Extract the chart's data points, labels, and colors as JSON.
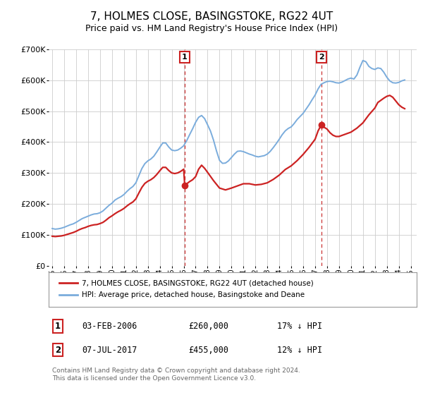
{
  "title": "7, HOLMES CLOSE, BASINGSTOKE, RG22 4UT",
  "subtitle": "Price paid vs. HM Land Registry's House Price Index (HPI)",
  "title_fontsize": 11,
  "subtitle_fontsize": 9,
  "bg_color": "#ffffff",
  "grid_color": "#cccccc",
  "ylim": [
    0,
    700000
  ],
  "yticks": [
    0,
    100000,
    200000,
    300000,
    400000,
    500000,
    600000,
    700000
  ],
  "ytick_labels": [
    "£0",
    "£100K",
    "£200K",
    "£300K",
    "£400K",
    "£500K",
    "£600K",
    "£700K"
  ],
  "xlim_start": 1994.7,
  "xlim_end": 2025.5,
  "xlabel_years": [
    1995,
    1996,
    1997,
    1998,
    1999,
    2000,
    2001,
    2002,
    2003,
    2004,
    2005,
    2006,
    2007,
    2008,
    2009,
    2010,
    2011,
    2012,
    2013,
    2014,
    2015,
    2016,
    2017,
    2018,
    2019,
    2020,
    2021,
    2022,
    2023,
    2024,
    2025
  ],
  "hpi_color": "#7aacdc",
  "sale_color": "#cc2222",
  "marker_color": "#cc2222",
  "dashed_line_color": "#cc3333",
  "annotation_box_color": "#cc2222",
  "sale1_x": 2006.09,
  "sale1_y": 260000,
  "sale2_x": 2017.51,
  "sale2_y": 455000,
  "legend_label_sale": "7, HOLMES CLOSE, BASINGSTOKE, RG22 4UT (detached house)",
  "legend_label_hpi": "HPI: Average price, detached house, Basingstoke and Deane",
  "table_row1": [
    "1",
    "03-FEB-2006",
    "£260,000",
    "17% ↓ HPI"
  ],
  "table_row2": [
    "2",
    "07-JUL-2017",
    "£455,000",
    "12% ↓ HPI"
  ],
  "footnote": "Contains HM Land Registry data © Crown copyright and database right 2024.\nThis data is licensed under the Open Government Licence v3.0.",
  "hpi_data": [
    [
      1995.0,
      120000
    ],
    [
      1995.25,
      118000
    ],
    [
      1995.5,
      119000
    ],
    [
      1995.75,
      121000
    ],
    [
      1996.0,
      124000
    ],
    [
      1996.25,
      128000
    ],
    [
      1996.5,
      132000
    ],
    [
      1996.75,
      135000
    ],
    [
      1997.0,
      140000
    ],
    [
      1997.25,
      146000
    ],
    [
      1997.5,
      152000
    ],
    [
      1997.75,
      156000
    ],
    [
      1998.0,
      160000
    ],
    [
      1998.25,
      164000
    ],
    [
      1998.5,
      167000
    ],
    [
      1998.75,
      168000
    ],
    [
      1999.0,
      171000
    ],
    [
      1999.25,
      177000
    ],
    [
      1999.5,
      186000
    ],
    [
      1999.75,
      195000
    ],
    [
      2000.0,
      202000
    ],
    [
      2000.25,
      212000
    ],
    [
      2000.5,
      218000
    ],
    [
      2000.75,
      223000
    ],
    [
      2001.0,
      230000
    ],
    [
      2001.25,
      240000
    ],
    [
      2001.5,
      249000
    ],
    [
      2001.75,
      256000
    ],
    [
      2002.0,
      268000
    ],
    [
      2002.25,
      291000
    ],
    [
      2002.5,
      314000
    ],
    [
      2002.75,
      330000
    ],
    [
      2003.0,
      339000
    ],
    [
      2003.25,
      345000
    ],
    [
      2003.5,
      354000
    ],
    [
      2003.75,
      368000
    ],
    [
      2004.0,
      383000
    ],
    [
      2004.25,
      397000
    ],
    [
      2004.5,
      397000
    ],
    [
      2004.75,
      384000
    ],
    [
      2005.0,
      374000
    ],
    [
      2005.25,
      372000
    ],
    [
      2005.5,
      374000
    ],
    [
      2005.75,
      380000
    ],
    [
      2006.0,
      388000
    ],
    [
      2006.25,
      404000
    ],
    [
      2006.5,
      424000
    ],
    [
      2006.75,
      443000
    ],
    [
      2007.0,
      464000
    ],
    [
      2007.25,
      480000
    ],
    [
      2007.5,
      486000
    ],
    [
      2007.75,
      476000
    ],
    [
      2008.0,
      456000
    ],
    [
      2008.25,
      435000
    ],
    [
      2008.5,
      406000
    ],
    [
      2008.75,
      371000
    ],
    [
      2009.0,
      341000
    ],
    [
      2009.25,
      331000
    ],
    [
      2009.5,
      332000
    ],
    [
      2009.75,
      339000
    ],
    [
      2010.0,
      350000
    ],
    [
      2010.25,
      361000
    ],
    [
      2010.5,
      370000
    ],
    [
      2010.75,
      371000
    ],
    [
      2011.0,
      369000
    ],
    [
      2011.25,
      365000
    ],
    [
      2011.5,
      361000
    ],
    [
      2011.75,
      358000
    ],
    [
      2012.0,
      354000
    ],
    [
      2012.25,
      352000
    ],
    [
      2012.5,
      354000
    ],
    [
      2012.75,
      356000
    ],
    [
      2013.0,
      361000
    ],
    [
      2013.25,
      370000
    ],
    [
      2013.5,
      382000
    ],
    [
      2013.75,
      395000
    ],
    [
      2014.0,
      409000
    ],
    [
      2014.25,
      424000
    ],
    [
      2014.5,
      436000
    ],
    [
      2014.75,
      444000
    ],
    [
      2015.0,
      449000
    ],
    [
      2015.25,
      460000
    ],
    [
      2015.5,
      473000
    ],
    [
      2015.75,
      483000
    ],
    [
      2016.0,
      493000
    ],
    [
      2016.25,
      507000
    ],
    [
      2016.5,
      521000
    ],
    [
      2016.75,
      537000
    ],
    [
      2017.0,
      552000
    ],
    [
      2017.25,
      572000
    ],
    [
      2017.5,
      587000
    ],
    [
      2017.75,
      592000
    ],
    [
      2018.0,
      596000
    ],
    [
      2018.25,
      597000
    ],
    [
      2018.5,
      595000
    ],
    [
      2018.75,
      592000
    ],
    [
      2019.0,
      591000
    ],
    [
      2019.25,
      594000
    ],
    [
      2019.5,
      599000
    ],
    [
      2019.75,
      604000
    ],
    [
      2020.0,
      607000
    ],
    [
      2020.25,
      604000
    ],
    [
      2020.5,
      617000
    ],
    [
      2020.75,
      642000
    ],
    [
      2021.0,
      664000
    ],
    [
      2021.25,
      660000
    ],
    [
      2021.5,
      645000
    ],
    [
      2021.75,
      638000
    ],
    [
      2022.0,
      635000
    ],
    [
      2022.25,
      640000
    ],
    [
      2022.5,
      638000
    ],
    [
      2022.75,
      626000
    ],
    [
      2023.0,
      610000
    ],
    [
      2023.25,
      598000
    ],
    [
      2023.5,
      592000
    ],
    [
      2023.75,
      591000
    ],
    [
      2024.0,
      593000
    ],
    [
      2024.25,
      598000
    ],
    [
      2024.5,
      601000
    ]
  ],
  "sale_data": [
    [
      1995.0,
      95000
    ],
    [
      1995.25,
      94000
    ],
    [
      1995.5,
      95000
    ],
    [
      1995.75,
      96000
    ],
    [
      1996.0,
      98000
    ],
    [
      1996.25,
      101000
    ],
    [
      1996.5,
      104000
    ],
    [
      1996.75,
      107000
    ],
    [
      1997.0,
      111000
    ],
    [
      1997.25,
      116000
    ],
    [
      1997.5,
      120000
    ],
    [
      1997.75,
      123000
    ],
    [
      1998.0,
      127000
    ],
    [
      1998.25,
      130000
    ],
    [
      1998.5,
      132000
    ],
    [
      1998.75,
      133000
    ],
    [
      1999.0,
      136000
    ],
    [
      1999.25,
      140000
    ],
    [
      1999.5,
      147000
    ],
    [
      1999.75,
      155000
    ],
    [
      2000.0,
      161000
    ],
    [
      2000.25,
      168000
    ],
    [
      2000.5,
      174000
    ],
    [
      2000.75,
      179000
    ],
    [
      2001.0,
      185000
    ],
    [
      2001.25,
      193000
    ],
    [
      2001.5,
      200000
    ],
    [
      2001.75,
      206000
    ],
    [
      2002.0,
      216000
    ],
    [
      2002.25,
      235000
    ],
    [
      2002.5,
      253000
    ],
    [
      2002.75,
      266000
    ],
    [
      2003.0,
      273000
    ],
    [
      2003.25,
      278000
    ],
    [
      2003.5,
      285000
    ],
    [
      2003.75,
      295000
    ],
    [
      2004.0,
      307000
    ],
    [
      2004.25,
      318000
    ],
    [
      2004.5,
      318000
    ],
    [
      2004.75,
      308000
    ],
    [
      2005.0,
      300000
    ],
    [
      2005.25,
      298000
    ],
    [
      2005.5,
      300000
    ],
    [
      2005.75,
      305000
    ],
    [
      2006.0,
      312000
    ],
    [
      2006.09,
      260000
    ],
    [
      2006.5,
      272000
    ],
    [
      2006.75,
      278000
    ],
    [
      2007.0,
      288000
    ],
    [
      2007.25,
      312000
    ],
    [
      2007.5,
      325000
    ],
    [
      2007.75,
      315000
    ],
    [
      2008.0,
      302000
    ],
    [
      2008.5,
      275000
    ],
    [
      2009.0,
      251000
    ],
    [
      2009.5,
      245000
    ],
    [
      2010.0,
      251000
    ],
    [
      2010.5,
      258000
    ],
    [
      2011.0,
      265000
    ],
    [
      2011.5,
      265000
    ],
    [
      2012.0,
      261000
    ],
    [
      2012.5,
      263000
    ],
    [
      2013.0,
      268000
    ],
    [
      2013.5,
      279000
    ],
    [
      2014.0,
      293000
    ],
    [
      2014.5,
      311000
    ],
    [
      2015.0,
      323000
    ],
    [
      2015.5,
      340000
    ],
    [
      2016.0,
      360000
    ],
    [
      2016.5,
      383000
    ],
    [
      2017.0,
      409000
    ],
    [
      2017.25,
      436000
    ],
    [
      2017.51,
      455000
    ],
    [
      2017.75,
      448000
    ],
    [
      2018.0,
      442000
    ],
    [
      2018.25,
      430000
    ],
    [
      2018.5,
      422000
    ],
    [
      2018.75,
      418000
    ],
    [
      2019.0,
      418000
    ],
    [
      2019.5,
      425000
    ],
    [
      2020.0,
      432000
    ],
    [
      2020.5,
      445000
    ],
    [
      2021.0,
      462000
    ],
    [
      2021.5,
      488000
    ],
    [
      2022.0,
      510000
    ],
    [
      2022.25,
      528000
    ],
    [
      2022.5,
      535000
    ],
    [
      2022.75,
      542000
    ],
    [
      2023.0,
      548000
    ],
    [
      2023.25,
      551000
    ],
    [
      2023.5,
      545000
    ],
    [
      2023.75,
      533000
    ],
    [
      2024.0,
      521000
    ],
    [
      2024.25,
      513000
    ],
    [
      2024.5,
      508000
    ]
  ]
}
